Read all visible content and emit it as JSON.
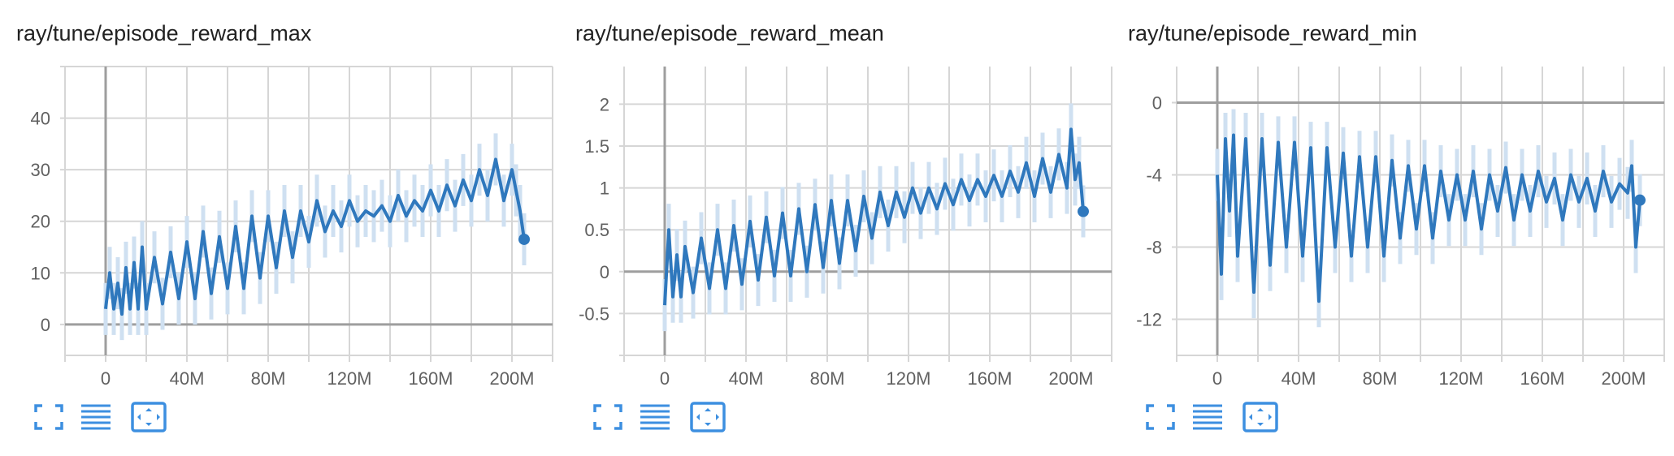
{
  "panels": [
    {
      "title": "ray/tune/episode_reward_max",
      "toolbar": {
        "fullscreen_icon": "fullscreen-icon",
        "data_icon": "data-table-icon",
        "fit_icon": "fit-domain-icon"
      }
    },
    {
      "title": "ray/tune/episode_reward_mean",
      "toolbar": {
        "fullscreen_icon": "fullscreen-icon",
        "data_icon": "data-table-icon",
        "fit_icon": "fit-domain-icon"
      }
    },
    {
      "title": "ray/tune/episode_reward_min",
      "toolbar": {
        "fullscreen_icon": "fullscreen-icon",
        "data_icon": "data-table-icon",
        "fit_icon": "fit-domain-icon"
      }
    }
  ],
  "colors": {
    "line": "#2f78bd",
    "band": "#cfe0f1",
    "grid": "#d6d6d6",
    "axis": "#9e9e9e",
    "icon": "#3d8fe0"
  },
  "chart_data": [
    {
      "type": "line",
      "title": "ray/tune/episode_reward_max",
      "xlabel": "",
      "ylabel": "",
      "xticks": [
        "0",
        "40M",
        "80M",
        "120M",
        "160M",
        "200M"
      ],
      "yticks": [
        "0",
        "10",
        "20",
        "30",
        "40"
      ],
      "xlim": [
        -20000000,
        220000000
      ],
      "ylim": [
        -6,
        50
      ],
      "grid": true,
      "legend": "none",
      "series": [
        {
          "x": [
            0,
            2000000.0,
            4000000.0,
            6000000.0,
            8000000.0,
            10000000.0,
            12000000.0,
            14000000.0,
            16000000.0,
            18000000.0,
            20000000.0,
            24000000.0,
            28000000.0,
            32000000.0,
            36000000.0,
            40000000.0,
            44000000.0,
            48000000.0,
            52000000.0,
            56000000.0,
            60000000.0,
            64000000.0,
            68000000.0,
            72000000.0,
            76000000.0,
            80000000.0,
            84000000.0,
            88000000.0,
            92000000.0,
            96000000.0,
            100000000.0,
            104000000.0,
            108000000.0,
            112000000.0,
            116000000.0,
            120000000.0,
            124000000.0,
            128000000.0,
            132000000.0,
            136000000.0,
            140000000.0,
            144000000.0,
            148000000.0,
            152000000.0,
            156000000.0,
            160000000.0,
            164000000.0,
            168000000.0,
            172000000.0,
            176000000.0,
            180000000.0,
            184000000.0,
            188000000.0,
            192000000.0,
            196000000.0,
            200000000.0,
            202000000.0,
            204000000.0,
            206000000.0
          ],
          "y": [
            3,
            10,
            3,
            8,
            2,
            11,
            3,
            12,
            3,
            15,
            3,
            13,
            4,
            14,
            5,
            16,
            5,
            18,
            6,
            17,
            7,
            19,
            7,
            21,
            9,
            21,
            11,
            22,
            13,
            22,
            16,
            24,
            18,
            22,
            19,
            24,
            20,
            22,
            21,
            23,
            20,
            25,
            21,
            24,
            22,
            26,
            22,
            27,
            23,
            28,
            24,
            30,
            25,
            32,
            24,
            30,
            26,
            22,
            16.5
          ]
        }
      ]
    },
    {
      "type": "line",
      "title": "ray/tune/episode_reward_mean",
      "xlabel": "",
      "ylabel": "",
      "xticks": [
        "0",
        "40M",
        "80M",
        "120M",
        "160M",
        "200M"
      ],
      "yticks": [
        "-0.5",
        "0",
        "0.5",
        "1",
        "1.5",
        "2"
      ],
      "xlim": [
        -20000000,
        220000000
      ],
      "ylim": [
        -1,
        2.45
      ],
      "grid": true,
      "legend": "none",
      "series": [
        {
          "x": [
            0,
            2000000.0,
            4000000.0,
            6000000.0,
            8000000.0,
            10000000.0,
            14000000.0,
            18000000.0,
            22000000.0,
            26000000.0,
            30000000.0,
            34000000.0,
            38000000.0,
            42000000.0,
            46000000.0,
            50000000.0,
            54000000.0,
            58000000.0,
            62000000.0,
            66000000.0,
            70000000.0,
            74000000.0,
            78000000.0,
            82000000.0,
            86000000.0,
            90000000.0,
            94000000.0,
            98000000.0,
            102000000.0,
            106000000.0,
            110000000.0,
            114000000.0,
            118000000.0,
            122000000.0,
            126000000.0,
            130000000.0,
            134000000.0,
            138000000.0,
            142000000.0,
            146000000.0,
            150000000.0,
            154000000.0,
            158000000.0,
            162000000.0,
            166000000.0,
            170000000.0,
            174000000.0,
            178000000.0,
            182000000.0,
            186000000.0,
            190000000.0,
            194000000.0,
            198000000.0,
            200000000.0,
            202000000.0,
            204000000.0,
            206000000.0
          ],
          "y": [
            -0.4,
            0.5,
            -0.3,
            0.2,
            -0.3,
            0.3,
            -0.25,
            0.4,
            -0.2,
            0.5,
            -0.2,
            0.55,
            -0.15,
            0.6,
            -0.1,
            0.65,
            -0.05,
            0.7,
            -0.05,
            0.75,
            0.0,
            0.8,
            0.05,
            0.85,
            0.1,
            0.85,
            0.25,
            0.9,
            0.4,
            0.95,
            0.55,
            0.95,
            0.65,
            1.0,
            0.7,
            1.0,
            0.75,
            1.05,
            0.8,
            1.1,
            0.85,
            1.1,
            0.9,
            1.15,
            0.9,
            1.2,
            0.95,
            1.3,
            0.9,
            1.35,
            0.95,
            1.4,
            1.0,
            1.7,
            1.1,
            1.3,
            0.72
          ]
        }
      ]
    },
    {
      "type": "line",
      "title": "ray/tune/episode_reward_min",
      "xlabel": "",
      "ylabel": "",
      "xticks": [
        "0",
        "40M",
        "80M",
        "120M",
        "160M",
        "200M"
      ],
      "yticks": [
        "-12",
        "-8",
        "-4",
        "0"
      ],
      "xlim": [
        -20000000,
        220000000
      ],
      "ylim": [
        -14,
        2
      ],
      "grid": true,
      "legend": "none",
      "series": [
        {
          "x": [
            0,
            2000000.0,
            4000000.0,
            6000000.0,
            8000000.0,
            10000000.0,
            14000000.0,
            18000000.0,
            22000000.0,
            26000000.0,
            30000000.0,
            34000000.0,
            38000000.0,
            42000000.0,
            46000000.0,
            50000000.0,
            54000000.0,
            58000000.0,
            62000000.0,
            66000000.0,
            70000000.0,
            74000000.0,
            78000000.0,
            82000000.0,
            86000000.0,
            90000000.0,
            94000000.0,
            98000000.0,
            102000000.0,
            106000000.0,
            110000000.0,
            114000000.0,
            118000000.0,
            122000000.0,
            126000000.0,
            130000000.0,
            134000000.0,
            138000000.0,
            142000000.0,
            146000000.0,
            150000000.0,
            154000000.0,
            158000000.0,
            162000000.0,
            166000000.0,
            170000000.0,
            174000000.0,
            178000000.0,
            182000000.0,
            186000000.0,
            190000000.0,
            194000000.0,
            198000000.0,
            202000000.0,
            204000000.0,
            206000000.0,
            208000000.0
          ],
          "y": [
            -4,
            -9.5,
            -2,
            -6,
            -1.8,
            -8.5,
            -2,
            -10.5,
            -2,
            -9,
            -2.2,
            -8,
            -2.2,
            -8.5,
            -2.5,
            -11,
            -2.5,
            -8,
            -2.8,
            -8.5,
            -3,
            -8,
            -3,
            -8.5,
            -3.2,
            -7.5,
            -3.5,
            -7,
            -3.5,
            -7.5,
            -3.8,
            -6.5,
            -4,
            -6.5,
            -3.8,
            -7,
            -4,
            -6,
            -3.6,
            -6.5,
            -4,
            -6,
            -3.8,
            -5.5,
            -4.2,
            -6.5,
            -4,
            -5.5,
            -4.2,
            -6,
            -3.8,
            -5.5,
            -4.5,
            -5,
            -3.5,
            -8,
            -5.4
          ]
        }
      ]
    }
  ]
}
